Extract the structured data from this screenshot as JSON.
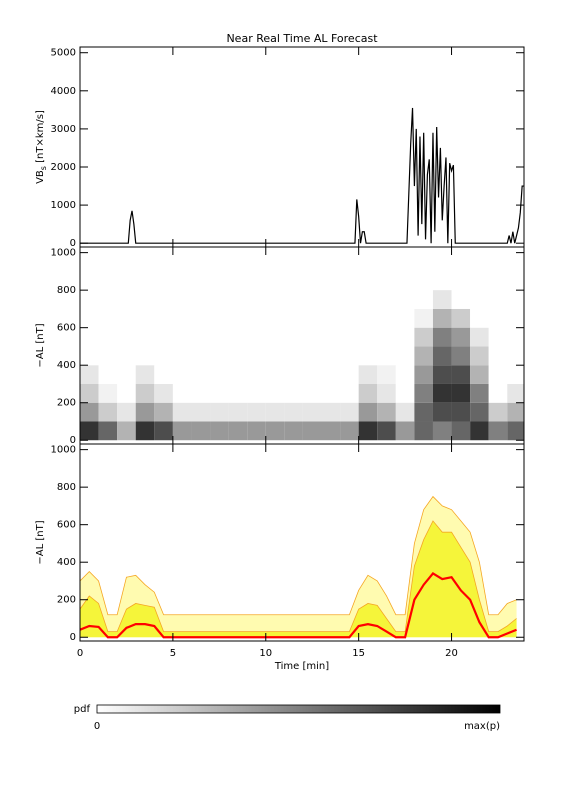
{
  "chart_data": [
    {
      "type": "line",
      "title": "Near Real Time AL Forecast",
      "ylabel": {
        "base": "VB",
        "sub": "s",
        "rest": " [nT×km/s]"
      },
      "xlim": [
        0,
        23.9
      ],
      "xticks": [
        0,
        5,
        10,
        15,
        20
      ],
      "show_xtick_labels": false,
      "ylim": [
        -100,
        5150
      ],
      "yticks": [
        0,
        1000,
        2000,
        3000,
        4000,
        5000
      ],
      "color": "#000000",
      "x": [
        0,
        2.6,
        2.7,
        2.8,
        2.9,
        3.0,
        3.1,
        14.7,
        14.8,
        14.9,
        15.0,
        15.1,
        15.2,
        15.3,
        15.4,
        17.6,
        17.8,
        17.9,
        18.0,
        18.1,
        18.2,
        18.3,
        18.4,
        18.5,
        18.6,
        18.7,
        18.8,
        18.9,
        19.0,
        19.1,
        19.2,
        19.3,
        19.4,
        19.5,
        19.6,
        19.7,
        19.8,
        19.9,
        20.0,
        20.1,
        20.2,
        20.3,
        20.4,
        20.5,
        23.0,
        23.1,
        23.2,
        23.3,
        23.4,
        23.5,
        23.6,
        23.7,
        23.8,
        23.9
      ],
      "values": [
        0,
        0,
        600,
        850,
        500,
        0,
        0,
        0,
        0,
        1150,
        700,
        0,
        300,
        300,
        0,
        0,
        2600,
        3550,
        1500,
        3000,
        200,
        2800,
        500,
        2900,
        100,
        1800,
        2200,
        0,
        2900,
        300,
        3050,
        1200,
        2500,
        600,
        1500,
        2250,
        0,
        2100,
        1900,
        2050,
        0,
        0,
        0,
        0,
        0,
        200,
        0,
        300,
        0,
        200,
        400,
        800,
        1500,
        1500
      ]
    },
    {
      "type": "heatmap",
      "ylabel": "−AL [nT]",
      "xlim": [
        0,
        23.9
      ],
      "xticks": [
        0,
        5,
        10,
        15,
        20
      ],
      "show_xtick_labels": false,
      "ylim": [
        -20,
        1030
      ],
      "yticks": [
        0,
        200,
        400,
        600,
        800,
        1000
      ],
      "x_bins": [
        0,
        1,
        2,
        3,
        4,
        5,
        6,
        7,
        8,
        9,
        10,
        11,
        12,
        13,
        14,
        15,
        16,
        17,
        18,
        19,
        20,
        21,
        22,
        23,
        24
      ],
      "y_bins": [
        0,
        100,
        200,
        300,
        400,
        500,
        600,
        700,
        800
      ],
      "z": [
        [
          0.8,
          0.6,
          0.3,
          0.8,
          0.7,
          0.4,
          0.4,
          0.4,
          0.4,
          0.4,
          0.4,
          0.4,
          0.4,
          0.4,
          0.4,
          0.8,
          0.7,
          0.4,
          0.6,
          0.5,
          0.6,
          0.8,
          0.5,
          0.6
        ],
        [
          0.4,
          0.2,
          0.1,
          0.4,
          0.3,
          0.1,
          0.1,
          0.1,
          0.1,
          0.1,
          0.1,
          0.1,
          0.1,
          0.1,
          0.1,
          0.4,
          0.3,
          0.1,
          0.6,
          0.7,
          0.7,
          0.6,
          0.2,
          0.3
        ],
        [
          0.2,
          0.05,
          0,
          0.2,
          0.1,
          0,
          0,
          0,
          0,
          0,
          0,
          0,
          0,
          0,
          0,
          0.2,
          0.1,
          0,
          0.5,
          0.8,
          0.8,
          0.5,
          0,
          0.1
        ],
        [
          0.1,
          0,
          0,
          0.1,
          0,
          0,
          0,
          0,
          0,
          0,
          0,
          0,
          0,
          0,
          0,
          0.1,
          0.05,
          0,
          0.4,
          0.7,
          0.7,
          0.3,
          0,
          0
        ],
        [
          0,
          0,
          0,
          0,
          0,
          0,
          0,
          0,
          0,
          0,
          0,
          0,
          0,
          0,
          0,
          0,
          0,
          0,
          0.3,
          0.6,
          0.5,
          0.2,
          0,
          0
        ],
        [
          0,
          0,
          0,
          0,
          0,
          0,
          0,
          0,
          0,
          0,
          0,
          0,
          0,
          0,
          0,
          0,
          0,
          0,
          0.2,
          0.5,
          0.4,
          0.1,
          0,
          0
        ],
        [
          0,
          0,
          0,
          0,
          0,
          0,
          0,
          0,
          0,
          0,
          0,
          0,
          0,
          0,
          0,
          0,
          0,
          0,
          0.05,
          0.3,
          0.2,
          0,
          0,
          0
        ],
        [
          0,
          0,
          0,
          0,
          0,
          0,
          0,
          0,
          0,
          0,
          0,
          0,
          0,
          0,
          0,
          0,
          0,
          0,
          0,
          0.1,
          0,
          0,
          0,
          0
        ]
      ],
      "colorbar": {
        "label": "pdf",
        "min_label": "0",
        "max_label": "max(p)"
      }
    },
    {
      "type": "area",
      "ylabel": "−AL [nT]",
      "xlabel": "Time [min]",
      "xlim": [
        0,
        23.9
      ],
      "xticks": [
        0,
        5,
        10,
        15,
        20
      ],
      "show_xtick_labels": true,
      "ylim": [
        -20,
        1030
      ],
      "yticks": [
        0,
        200,
        400,
        600,
        800,
        1000
      ],
      "x": [
        0,
        0.5,
        1,
        1.5,
        2,
        2.5,
        3,
        3.5,
        4,
        4.5,
        5,
        5.5,
        6,
        6.5,
        7,
        7.5,
        8,
        8.5,
        9,
        9.5,
        10,
        10.5,
        11,
        11.5,
        12,
        12.5,
        13,
        13.5,
        14,
        14.5,
        15,
        15.5,
        16,
        16.5,
        17,
        17.5,
        18,
        18.5,
        19,
        19.5,
        20,
        20.5,
        21,
        21.5,
        22,
        22.5,
        23,
        23.5
      ],
      "series": [
        {
          "color": "#fffbb0",
          "edge": "#f5a623",
          "fill": true,
          "values": [
            300,
            350,
            300,
            120,
            120,
            320,
            330,
            280,
            240,
            120,
            120,
            120,
            120,
            120,
            120,
            120,
            120,
            120,
            120,
            120,
            120,
            120,
            120,
            120,
            120,
            120,
            120,
            120,
            120,
            120,
            250,
            330,
            300,
            220,
            120,
            120,
            500,
            680,
            750,
            700,
            680,
            620,
            560,
            400,
            120,
            120,
            180,
            200
          ]
        },
        {
          "color": "#f5f53a",
          "edge": "#f5a623",
          "fill": true,
          "values": [
            150,
            220,
            180,
            30,
            30,
            150,
            180,
            170,
            160,
            30,
            30,
            30,
            30,
            30,
            30,
            30,
            30,
            30,
            30,
            30,
            30,
            30,
            30,
            30,
            30,
            30,
            30,
            30,
            30,
            30,
            150,
            180,
            170,
            100,
            30,
            30,
            380,
            520,
            620,
            560,
            560,
            480,
            400,
            200,
            30,
            30,
            60,
            100
          ]
        },
        {
          "color": "#ff0000",
          "fill": false,
          "values": [
            40,
            60,
            55,
            0,
            0,
            50,
            70,
            70,
            60,
            0,
            0,
            0,
            0,
            0,
            0,
            0,
            0,
            0,
            0,
            0,
            0,
            0,
            0,
            0,
            0,
            0,
            0,
            0,
            0,
            0,
            60,
            70,
            60,
            30,
            0,
            0,
            200,
            280,
            340,
            310,
            320,
            250,
            200,
            80,
            0,
            0,
            20,
            40
          ]
        }
      ]
    }
  ]
}
